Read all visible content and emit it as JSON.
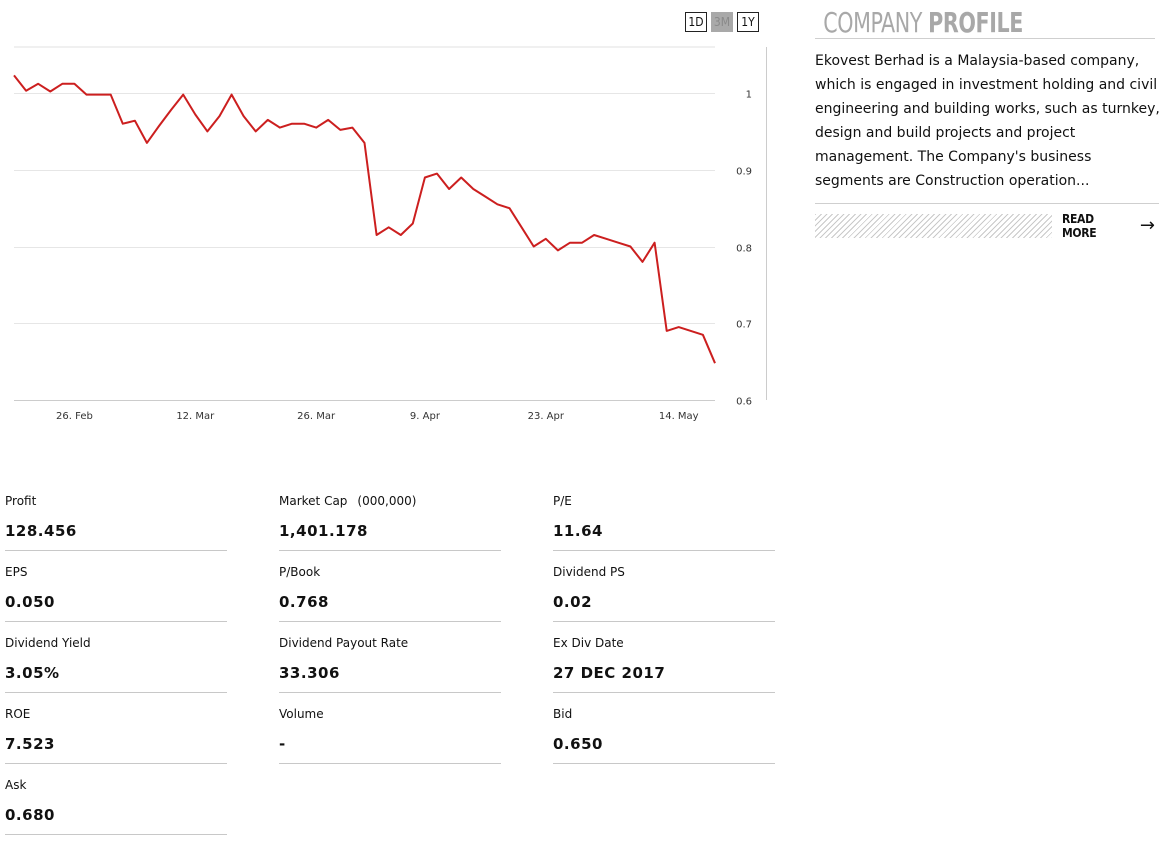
{
  "range_buttons": [
    {
      "label": "1D",
      "active": false
    },
    {
      "label": "3M",
      "active": true
    },
    {
      "label": "1Y",
      "active": false
    }
  ],
  "chart_data": {
    "type": "line",
    "title": "",
    "xlabel": "",
    "ylabel": "",
    "line_color": "#cc1f1f",
    "grid": true,
    "ylim": [
      0.6,
      1.06
    ],
    "yticks": [
      1,
      0.9,
      0.8,
      0.7,
      0.6
    ],
    "xticks": [
      {
        "label": "26. Feb",
        "index": 5
      },
      {
        "label": "12. Mar",
        "index": 15
      },
      {
        "label": "26. Mar",
        "index": 25
      },
      {
        "label": "9. Apr",
        "index": 34
      },
      {
        "label": "23. Apr",
        "index": 44
      },
      {
        "label": "14. May",
        "index": 55
      }
    ],
    "series": [
      {
        "values": [
          1.023,
          1.003,
          1.012,
          1.002,
          1.012,
          1.012,
          0.998,
          0.998,
          0.998,
          0.96,
          0.964,
          0.935,
          0.957,
          0.978,
          0.998,
          0.972,
          0.95,
          0.97,
          0.998,
          0.97,
          0.95,
          0.965,
          0.955,
          0.96,
          0.96,
          0.955,
          0.965,
          0.952,
          0.955,
          0.935,
          0.815,
          0.825,
          0.815,
          0.83,
          0.89,
          0.895,
          0.875,
          0.89,
          0.875,
          0.865,
          0.855,
          0.85,
          0.825,
          0.8,
          0.81,
          0.795,
          0.805,
          0.805,
          0.815,
          0.81,
          0.805,
          0.8,
          0.78,
          0.805,
          0.69,
          0.695,
          0.69,
          0.685,
          0.648
        ]
      }
    ]
  },
  "profile": {
    "title_light": "COMPANY",
    "title_bold": "PROFILE",
    "description": "Ekovest Berhad is a Malaysia-based company, which is engaged in investment holding and civil engineering and building works, such as turnkey, design and build projects and project management. The Company's business segments are Construction operation...",
    "read_more": "READ MORE",
    "arrow_icon": "arrow-right-icon"
  },
  "stats": {
    "profit": {
      "label": "Profit",
      "value": "128.456"
    },
    "market_cap": {
      "label": "Market Cap",
      "unit": "(000,000)",
      "value": "1,401.178"
    },
    "pe": {
      "label": "P/E",
      "value": "11.64"
    },
    "eps": {
      "label": "EPS",
      "value": "0.050"
    },
    "pbook": {
      "label": "P/Book",
      "value": "0.768"
    },
    "dividend_ps": {
      "label": "Dividend PS",
      "value": "0.02"
    },
    "dividend_yield": {
      "label": "Dividend Yield",
      "value": "3.05%"
    },
    "dividend_payout": {
      "label": "Dividend Payout Rate",
      "value": "33.306"
    },
    "ex_div_date": {
      "label": "Ex Div Date",
      "value": "27 DEC 2017"
    },
    "roe": {
      "label": "ROE",
      "value": "7.523"
    },
    "volume": {
      "label": "Volume",
      "value": "-"
    },
    "bid": {
      "label": "Bid",
      "value": "0.650"
    },
    "ask": {
      "label": "Ask",
      "value": "0.680"
    }
  }
}
